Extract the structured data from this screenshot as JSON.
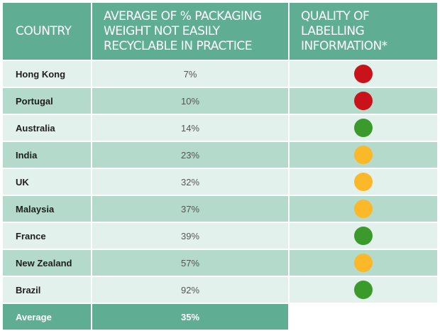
{
  "headers": {
    "country": "COUNTRY",
    "packaging": "AVERAGE OF % PACKAGING WEIGHT NOT EASILY RECYCLABLE IN PRACTICE",
    "labelling": "QUALITY OF LABELLING INFORMATION*"
  },
  "rows": [
    {
      "country": "Hong Kong",
      "value": "7%",
      "rating": "red"
    },
    {
      "country": "Portugal",
      "value": "10%",
      "rating": "red"
    },
    {
      "country": "Australia",
      "value": "14%",
      "rating": "green"
    },
    {
      "country": "India",
      "value": "23%",
      "rating": "amber"
    },
    {
      "country": "UK",
      "value": "32%",
      "rating": "amber"
    },
    {
      "country": "Malaysia",
      "value": "37%",
      "rating": "amber"
    },
    {
      "country": "France",
      "value": "39%",
      "rating": "green"
    },
    {
      "country": "New Zealand",
      "value": "57%",
      "rating": "amber"
    },
    {
      "country": "Brazil",
      "value": "92%",
      "rating": "green"
    }
  ],
  "footer": {
    "label": "Average",
    "value": "35%"
  },
  "colors": {
    "header_bg": "#5fae94",
    "row_light": "#e3f1ec",
    "row_dark": "#b3dacb",
    "red": "#c9121a",
    "amber": "#fbb829",
    "green": "#3a9a2c"
  }
}
